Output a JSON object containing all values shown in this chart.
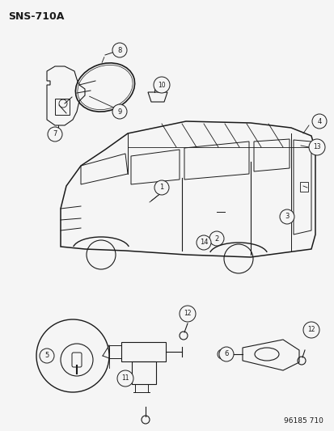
{
  "title": "SNS-710A",
  "footer": "96185 710",
  "bg_color": "#f5f5f5",
  "line_color": "#1a1a1a",
  "fig_width": 4.14,
  "fig_height": 5.33,
  "dpi": 100
}
